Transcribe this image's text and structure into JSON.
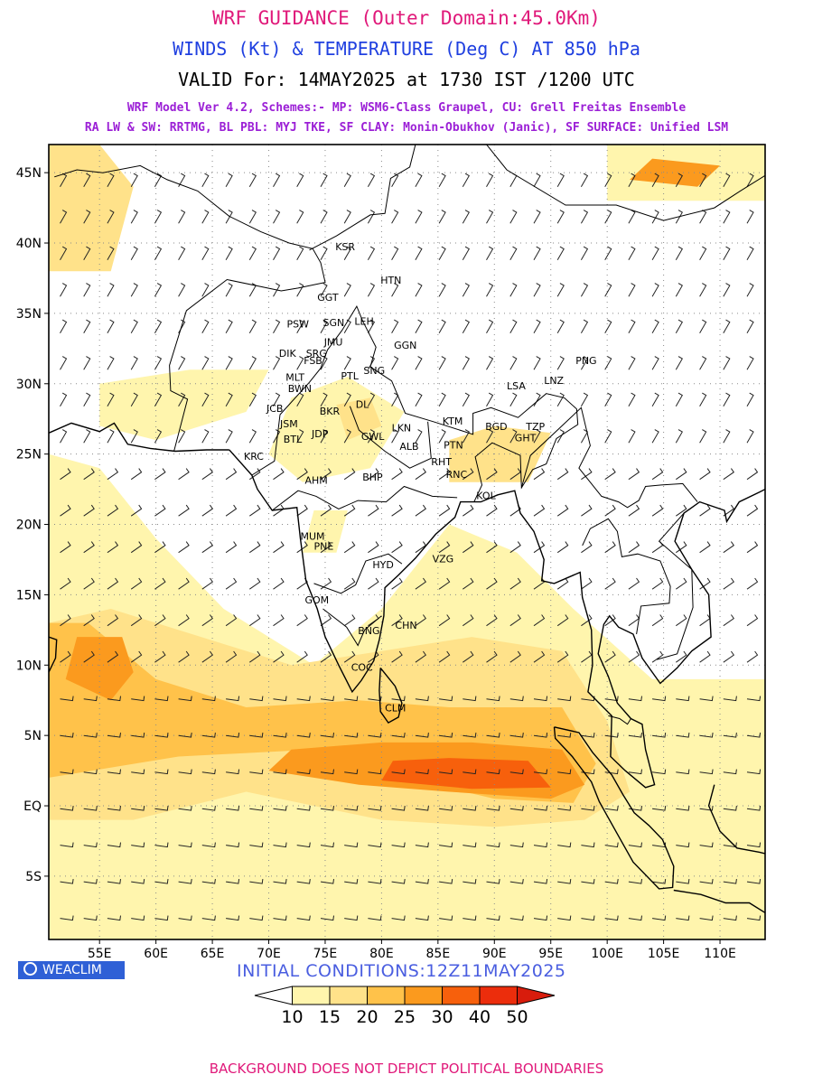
{
  "header": {
    "title": "WRF GUIDANCE (Outer Domain:45.0Km)",
    "subtitle": "WINDS (Kt) & TEMPERATURE (Deg C) AT 850 hPa",
    "valid": "VALID For: 14MAY2025 at 1730 IST /1200 UTC",
    "model_line_1": "WRF Model Ver 4.2, Schemes:- MP: WSM6-Class Graupel, CU: Grell Freitas Ensemble",
    "model_line_2": "RA LW & SW: RRTMG, BL PBL: MYJ TKE, SF CLAY: Monin-Obukhov (Janic), SF SURFACE: Unified LSM"
  },
  "map": {
    "lon_range": [
      50.5,
      114
    ],
    "lat_range": [
      -9.5,
      47
    ],
    "lat_ticks": [
      {
        "value": 45,
        "label": "45N"
      },
      {
        "value": 40,
        "label": "40N"
      },
      {
        "value": 35,
        "label": "35N"
      },
      {
        "value": 30,
        "label": "30N"
      },
      {
        "value": 25,
        "label": "25N"
      },
      {
        "value": 20,
        "label": "20N"
      },
      {
        "value": 15,
        "label": "15N"
      },
      {
        "value": 10,
        "label": "10N"
      },
      {
        "value": 5,
        "label": "5N"
      },
      {
        "value": 0,
        "label": "EQ"
      },
      {
        "value": -5,
        "label": "5S"
      }
    ],
    "lon_ticks": [
      {
        "value": 55,
        "label": "55E"
      },
      {
        "value": 60,
        "label": "60E"
      },
      {
        "value": 65,
        "label": "65E"
      },
      {
        "value": 70,
        "label": "70E"
      },
      {
        "value": 75,
        "label": "75E"
      },
      {
        "value": 80,
        "label": "80E"
      },
      {
        "value": 85,
        "label": "85E"
      },
      {
        "value": 90,
        "label": "90E"
      },
      {
        "value": 95,
        "label": "95E"
      },
      {
        "value": 100,
        "label": "100E"
      },
      {
        "value": 105,
        "label": "105E"
      },
      {
        "value": 110,
        "label": "110E"
      }
    ],
    "colors": {
      "frame": "#000000",
      "grid": "#8a8a8a",
      "coast": "#000000",
      "wind_barb": "#222222",
      "temp_label": "#2b3ed6",
      "station_label": "#000000"
    },
    "stations": [
      {
        "label": "KSR",
        "lon": 75.9,
        "lat": 39.5
      },
      {
        "label": "HTN",
        "lon": 79.9,
        "lat": 37.1
      },
      {
        "label": "GGT",
        "lon": 74.3,
        "lat": 35.9
      },
      {
        "label": "PSW",
        "lon": 71.6,
        "lat": 34.0
      },
      {
        "label": "SGN",
        "lon": 74.8,
        "lat": 34.1
      },
      {
        "label": "LEH",
        "lon": 77.6,
        "lat": 34.2
      },
      {
        "label": "JMU",
        "lon": 74.9,
        "lat": 32.7
      },
      {
        "label": "GGN",
        "lon": 81.1,
        "lat": 32.5
      },
      {
        "label": "DIK",
        "lon": 70.9,
        "lat": 31.9
      },
      {
        "label": "SRG",
        "lon": 73.3,
        "lat": 31.9
      },
      {
        "label": "FSB",
        "lon": 73.1,
        "lat": 31.4
      },
      {
        "label": "MLT",
        "lon": 71.5,
        "lat": 30.2
      },
      {
        "label": "PTL",
        "lon": 76.4,
        "lat": 30.3
      },
      {
        "label": "SNG",
        "lon": 78.4,
        "lat": 30.7
      },
      {
        "label": "BWN",
        "lon": 71.7,
        "lat": 29.4
      },
      {
        "label": "LSA",
        "lon": 91.1,
        "lat": 29.6
      },
      {
        "label": "LNZ",
        "lon": 94.4,
        "lat": 30.0
      },
      {
        "label": "PNG",
        "lon": 97.2,
        "lat": 31.4
      },
      {
        "label": "JCB",
        "lon": 69.8,
        "lat": 28.0
      },
      {
        "label": "BKR",
        "lon": 74.5,
        "lat": 27.8
      },
      {
        "label": "DL",
        "lon": 77.7,
        "lat": 28.3
      },
      {
        "label": "KTM",
        "lon": 85.4,
        "lat": 27.1
      },
      {
        "label": "JSM",
        "lon": 71.0,
        "lat": 26.9
      },
      {
        "label": "JDP",
        "lon": 73.8,
        "lat": 26.2
      },
      {
        "label": "LKN",
        "lon": 80.9,
        "lat": 26.6
      },
      {
        "label": "GWL",
        "lon": 78.2,
        "lat": 26.0
      },
      {
        "label": "BGD",
        "lon": 89.2,
        "lat": 26.7
      },
      {
        "label": "TZP",
        "lon": 92.8,
        "lat": 26.7
      },
      {
        "label": "GHT",
        "lon": 91.8,
        "lat": 25.9
      },
      {
        "label": "BTL",
        "lon": 71.3,
        "lat": 25.8
      },
      {
        "label": "ALB",
        "lon": 81.6,
        "lat": 25.3
      },
      {
        "label": "PTN",
        "lon": 85.5,
        "lat": 25.4
      },
      {
        "label": "KRC",
        "lon": 67.8,
        "lat": 24.6
      },
      {
        "label": "RHT",
        "lon": 84.4,
        "lat": 24.2
      },
      {
        "label": "AHM",
        "lon": 73.2,
        "lat": 22.9
      },
      {
        "label": "BHP",
        "lon": 78.3,
        "lat": 23.1
      },
      {
        "label": "RNC",
        "lon": 85.7,
        "lat": 23.3
      },
      {
        "label": "KOL",
        "lon": 88.4,
        "lat": 21.8
      },
      {
        "label": "MUM",
        "lon": 72.8,
        "lat": 18.9
      },
      {
        "label": "PNE",
        "lon": 74.0,
        "lat": 18.2
      },
      {
        "label": "HYD",
        "lon": 79.2,
        "lat": 16.9
      },
      {
        "label": "VZG",
        "lon": 84.5,
        "lat": 17.3
      },
      {
        "label": "GOM",
        "lon": 73.2,
        "lat": 14.4
      },
      {
        "label": "CHN",
        "lon": 81.2,
        "lat": 12.6
      },
      {
        "label": "BNG",
        "lon": 77.9,
        "lat": 12.2
      },
      {
        "label": "COC",
        "lon": 77.3,
        "lat": 9.6
      },
      {
        "label": "CLM",
        "lon": 80.3,
        "lat": 6.7
      }
    ]
  },
  "colorbar": {
    "labels": [
      "10",
      "15",
      "20",
      "25",
      "30",
      "40",
      "50"
    ],
    "colors": [
      "#ffffff",
      "#fff5ad",
      "#ffe28a",
      "#ffc24a",
      "#fb9a1e",
      "#f7600c",
      "#ec2d0c",
      "#d81c0c"
    ]
  },
  "footer": {
    "logo_text": "WEACLIM",
    "initial_conditions": "INITIAL CONDITIONS:12Z11MAY2025",
    "disclaimer": "BACKGROUND DOES NOT DEPICT POLITICAL BOUNDARIES"
  }
}
